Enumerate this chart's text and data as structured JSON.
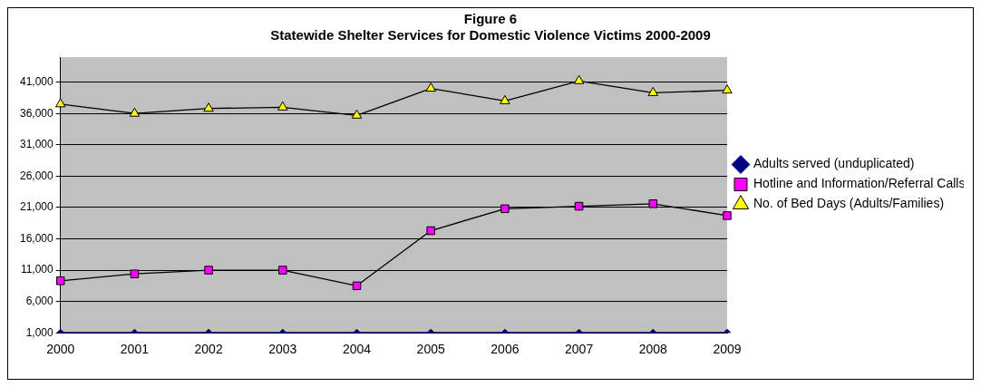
{
  "chart_data": {
    "type": "line",
    "title": "Figure 6",
    "subtitle": "Statewide Shelter Services for Domestic Violence Victims 2000-2009",
    "categories": [
      "2000",
      "2001",
      "2002",
      "2003",
      "2004",
      "2005",
      "2006",
      "2007",
      "2008",
      "2009"
    ],
    "series": [
      {
        "name": "Adults served (unduplicated)",
        "color": "#000080",
        "marker": "diamond",
        "values": [
          1000,
          1000,
          1000,
          1000,
          1000,
          1000,
          1000,
          1000,
          1000,
          1000
        ]
      },
      {
        "name": "Hotline and Information/Referral Calls",
        "color": "#ff00ff",
        "marker": "square",
        "values": [
          9300,
          10400,
          11000,
          11000,
          8500,
          17300,
          20800,
          21200,
          21600,
          19700
        ]
      },
      {
        "name": "No. of Bed Days (Adults/Families)",
        "color": "#ffff00",
        "marker": "triangle",
        "values": [
          37500,
          36000,
          36800,
          37000,
          35700,
          40000,
          38000,
          41200,
          39300,
          39700
        ]
      }
    ],
    "ylim": [
      1000,
      45000
    ],
    "yticks": [
      {
        "value": 1000,
        "label": "1,000"
      },
      {
        "value": 6000,
        "label": "6,000"
      },
      {
        "value": 11000,
        "label": "11,000"
      },
      {
        "value": 16000,
        "label": "16,000"
      },
      {
        "value": 21000,
        "label": "21,000"
      },
      {
        "value": 26000,
        "label": "26,000"
      },
      {
        "value": 31000,
        "label": "31,000"
      },
      {
        "value": 36000,
        "label": "36,000"
      },
      {
        "value": 41000,
        "label": "41,000"
      }
    ],
    "grid": "y",
    "legend": "right",
    "line_style": "solid"
  }
}
